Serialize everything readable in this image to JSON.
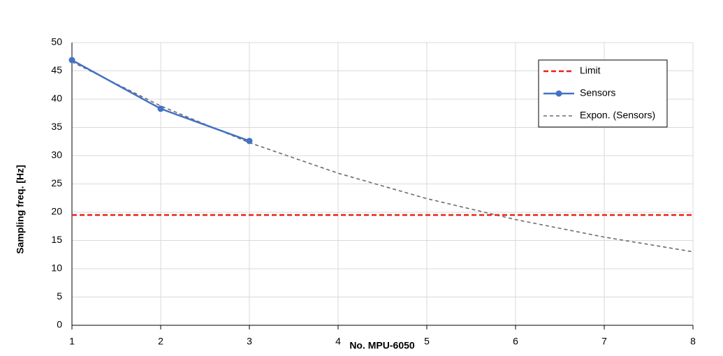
{
  "chart_data": {
    "type": "line",
    "y_label": "Sampling freq. [Hz]",
    "x_label": "No. MPU-6050",
    "x": [
      1,
      2,
      3,
      4,
      5,
      6,
      7,
      8
    ],
    "series": [
      {
        "name": "Limit",
        "color": "#e8201c",
        "style": "dashed",
        "marker": false,
        "values": [
          19.5,
          19.5,
          19.5,
          19.5,
          19.5,
          19.5,
          19.5,
          19.5
        ]
      },
      {
        "name": "Sensors",
        "color": "#4472c4",
        "style": "solid",
        "marker": true,
        "values": [
          46.9,
          38.3,
          32.6,
          null,
          null,
          null,
          null,
          null
        ]
      },
      {
        "name": "Expon. (Sensors)",
        "color": "#6b6b6b",
        "style": "dotted",
        "marker": false,
        "values": [
          46.6,
          38.8,
          32.3,
          26.9,
          22.4,
          18.7,
          15.6,
          13.0
        ]
      }
    ],
    "xlim": [
      1,
      8
    ],
    "xticks": [
      1,
      2,
      3,
      4,
      5,
      6,
      7,
      8
    ],
    "ylim": [
      0,
      50
    ],
    "yticks": [
      0,
      5,
      10,
      15,
      20,
      25,
      30,
      35,
      40,
      45,
      50
    ],
    "grid": true,
    "legend": "upper right"
  }
}
